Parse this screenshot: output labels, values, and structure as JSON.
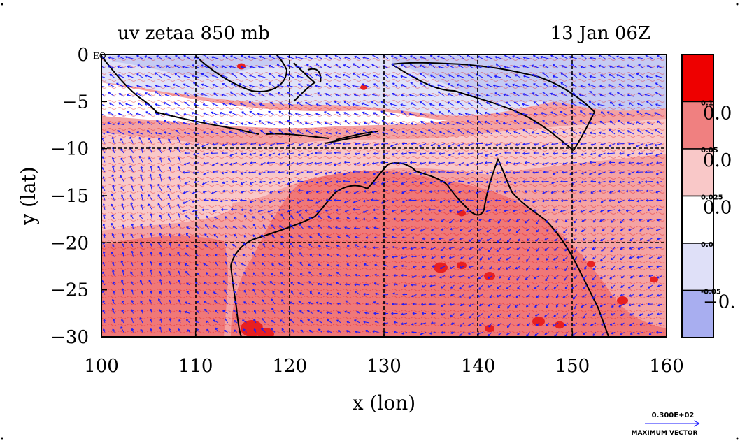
{
  "title_left": "uv zetaa 850 mb",
  "title_right": "13 Jan 06Z",
  "x_axis": {
    "label": "x (lon)",
    "ticks": [
      "100",
      "110",
      "120",
      "130",
      "140",
      "150",
      "160"
    ],
    "range": [
      100,
      160
    ]
  },
  "y_axis": {
    "label": "y (lat)",
    "ticks": [
      "0",
      "−5",
      "−10",
      "−15",
      "−20",
      "−25",
      "−30"
    ],
    "range": [
      -30,
      0
    ],
    "zero_suffix": "EQ"
  },
  "colorbar": {
    "levels": [
      {
        "small": "0.1",
        "big": "0.0",
        "color": "#f08080"
      },
      {
        "small": "0.05",
        "big": "0.0",
        "color": "#f9c8c8"
      },
      {
        "small": "0.025",
        "big": "0.0",
        "color": "#ffffff"
      },
      {
        "small": "0.0",
        "big": "",
        "color": "#dfe0f8"
      },
      {
        "small": "-0.05",
        "big": "−0.",
        "color": "#a8aef0"
      }
    ],
    "top_color": "#ee0000"
  },
  "vector_legend": {
    "value": "0.300E+02",
    "label": "MAXIMUM VECTOR"
  },
  "colors": {
    "land_outline": "#000000",
    "vector": "#1a1aff",
    "contour_red": "#e00000",
    "high_red": "#f07878",
    "mid_pink": "#f8b8b8",
    "neg_blue": "#c8ccf4"
  }
}
